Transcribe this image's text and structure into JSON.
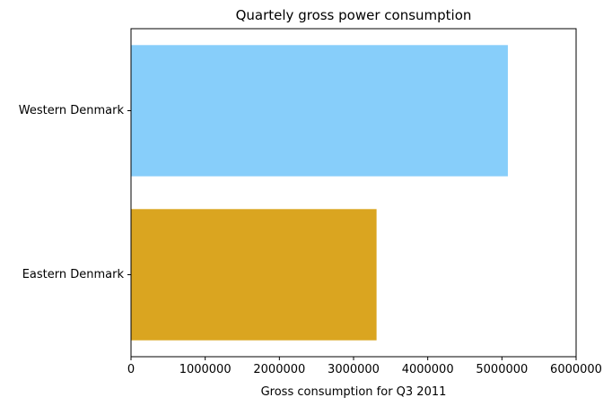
{
  "chart_data": {
    "type": "bar",
    "orientation": "horizontal",
    "title": "Quartely gross power consumption",
    "xlabel": "Gross consumption for Q3 2011",
    "ylabel": "",
    "categories": [
      "Western Denmark",
      "Eastern Denmark"
    ],
    "values": [
      5080000,
      3310000
    ],
    "colors": [
      "#87CEFA",
      "#DAA520"
    ],
    "xlim": [
      0,
      6000000
    ],
    "xticks": [
      "0",
      "1000000",
      "2000000",
      "3000000",
      "4000000",
      "5000000",
      "6000000"
    ],
    "grid": false,
    "legend": "none"
  }
}
